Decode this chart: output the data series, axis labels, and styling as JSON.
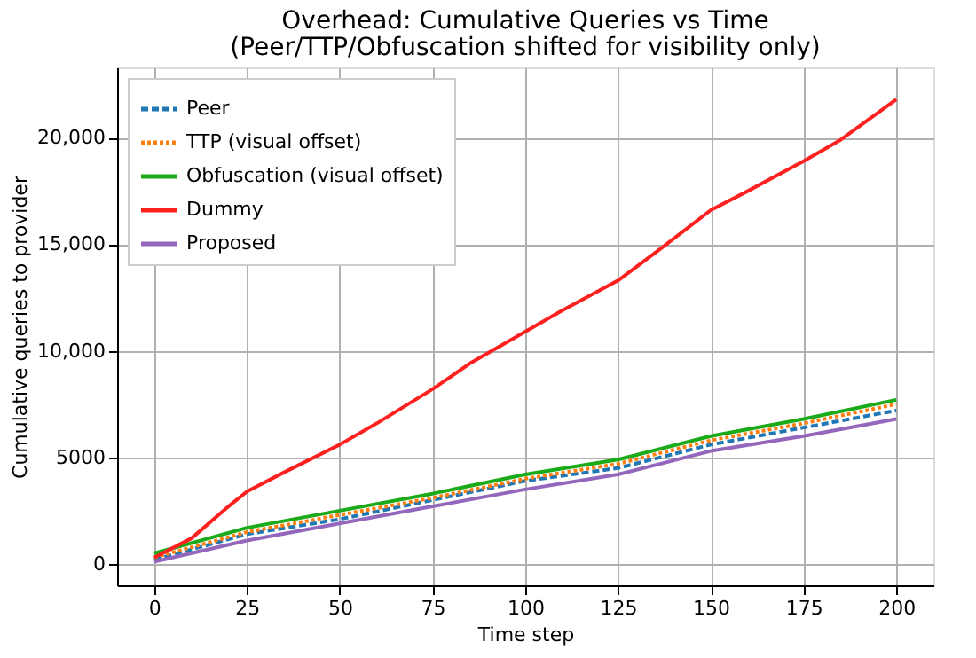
{
  "chart_data": {
    "type": "line",
    "title": "Overhead: Cumulative Queries vs Time",
    "subtitle": "(Peer/TTP/Obfuscation shifted for visibility only)",
    "xlabel": "Time step",
    "ylabel": "Cumulative queries to provider",
    "xlim": [
      -10,
      210
    ],
    "xticks": [
      0,
      25,
      50,
      75,
      100,
      125,
      150,
      175,
      200
    ],
    "ylim": [
      -1000,
      23300
    ],
    "yticks": [
      0,
      5000,
      {
        "value": 10000,
        "label": "10,000"
      },
      {
        "value": 15000,
        "label": "15,000"
      },
      {
        "value": 20000,
        "label": "20,000"
      }
    ],
    "grid": true,
    "legend": "top left",
    "series": [
      {
        "name": "Peer",
        "color": "#1f77b4",
        "line_style": "dashed",
        "x": [
          0,
          25,
          50,
          75,
          100,
          125,
          150,
          175,
          200
        ],
        "values": [
          200,
          1400,
          2100,
          3000,
          3900,
          4500,
          5600,
          6400,
          7200
        ]
      },
      {
        "name": "TTP (visual offset)",
        "color": "#ff7f0e",
        "line_style": "dotted",
        "x": [
          0,
          25,
          50,
          75,
          100,
          125,
          150,
          175,
          200
        ],
        "values": [
          300,
          1500,
          2300,
          3100,
          4000,
          4700,
          5800,
          6600,
          7500
        ]
      },
      {
        "name": "Obfuscation (visual offset)",
        "color": "#1aaa1a",
        "line_style": "solid",
        "x": [
          0,
          25,
          50,
          75,
          100,
          125,
          150,
          175,
          200
        ],
        "values": [
          500,
          1700,
          2500,
          3300,
          4200,
          4900,
          6000,
          6800,
          7700
        ]
      },
      {
        "name": "Dummy",
        "color": "#ff2020",
        "line_style": "solid",
        "x": [
          0,
          10,
          20,
          25,
          35,
          50,
          60,
          75,
          85,
          100,
          110,
          125,
          135,
          150,
          160,
          175,
          185,
          200
        ],
        "values": [
          300,
          1200,
          2700,
          3400,
          4300,
          5600,
          6600,
          8200,
          9400,
          10900,
          11900,
          13300,
          14600,
          16600,
          17500,
          18900,
          19900,
          21800
        ]
      },
      {
        "name": "Proposed",
        "color": "#9467bd",
        "line_style": "solid",
        "x": [
          0,
          25,
          50,
          75,
          100,
          125,
          150,
          175,
          200
        ],
        "values": [
          100,
          1100,
          1900,
          2700,
          3500,
          4200,
          5300,
          6000,
          6800
        ]
      }
    ]
  }
}
